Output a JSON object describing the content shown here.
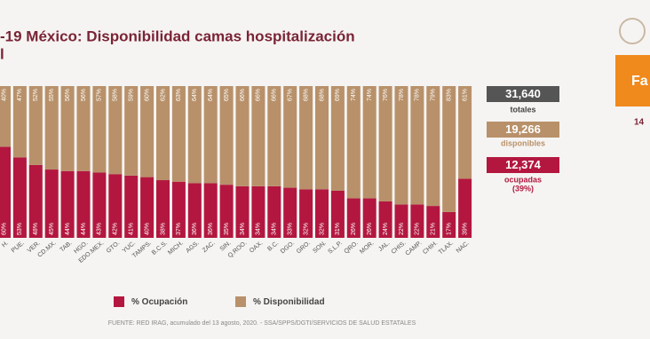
{
  "chart_data": {
    "type": "stacked-bar",
    "title": [
      "-19 México: Disponibilidad camas hospitalización",
      "l"
    ],
    "categories": [
      "H.",
      "PUE.",
      "VER.",
      "CD.MX.",
      "TAB.",
      "HGO.",
      "EDO.MEX.",
      "GTO.",
      "YUC.",
      "TAMPS.",
      "B.C.S.",
      "MICH.",
      "AGS.",
      "ZAC.",
      "SIN.",
      "Q.ROO.",
      "OAX.",
      "B.C.",
      "DGO.",
      "GRO.",
      "SON.",
      "S.L.P.",
      "QRO.",
      "MOR.",
      "JAL.",
      "CHIS.",
      "CAMP.",
      "CHIH.",
      "TLAX.",
      "NAC."
    ],
    "ylim": [
      0,
      100
    ],
    "series": [
      {
        "name": "% Ocupación",
        "color": "#b3173f",
        "values": [
          60,
          53,
          48,
          45,
          44,
          44,
          43,
          42,
          41,
          40,
          38,
          37,
          36,
          36,
          35,
          34,
          34,
          34,
          33,
          32,
          32,
          31,
          26,
          26,
          24,
          22,
          22,
          21,
          17,
          39
        ],
        "value_labels": [
          "60%",
          "53%",
          "48%",
          "45%",
          "44%",
          "44%",
          "43%",
          "42%",
          "41%",
          "40%",
          "38%",
          "37%",
          "36%",
          "36%",
          "35%",
          "34%",
          "34%",
          "34%",
          "33%",
          "32%",
          "32%",
          "31%",
          "26%",
          "26%",
          "24%",
          "22%",
          "22%",
          "21%",
          "17%",
          "39%"
        ]
      },
      {
        "name": "% Disponibilidad",
        "color": "#b8916a",
        "values": [
          40,
          47,
          52,
          55,
          56,
          56,
          57,
          58,
          59,
          60,
          62,
          63,
          64,
          64,
          65,
          66,
          66,
          66,
          67,
          68,
          68,
          69,
          74,
          74,
          76,
          78,
          78,
          79,
          83,
          61
        ],
        "value_labels": [
          "40%",
          "47%",
          "52%",
          "55%",
          "56%",
          "56%",
          "57%",
          "58%",
          "59%",
          "60%",
          "62%",
          "63%",
          "64%",
          "64%",
          "65%",
          "66%",
          "66%",
          "66%",
          "67%",
          "68%",
          "68%",
          "69%",
          "74%",
          "74%",
          "76%",
          "78%",
          "78%",
          "79%",
          "83%",
          "61%"
        ]
      }
    ],
    "source": "FUENTE: RED IRAG, acumulado del 13 agosto, 2020.   -   SSA/SPPS/DGTI/SERVICIOS DE SALUD ESTATALES"
  },
  "summary": {
    "total": "31,640",
    "total_label": "totales",
    "available": "19,266",
    "available_label": "disponibles",
    "occupied": "12,374",
    "occupied_label": "ocupadas",
    "occupied_pct": "(39%)"
  },
  "sidebar": {
    "button": "Fa",
    "text": "14"
  }
}
